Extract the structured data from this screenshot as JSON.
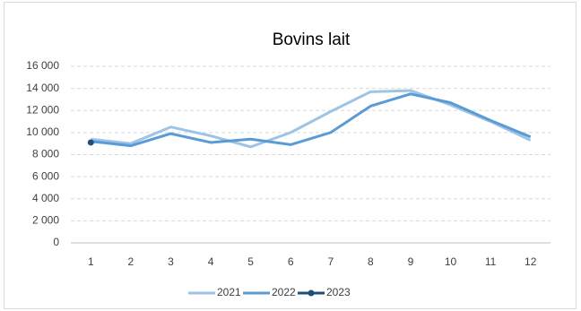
{
  "chart_data": {
    "type": "line",
    "title": "Bovins lait",
    "categories": [
      "1",
      "2",
      "3",
      "4",
      "5",
      "6",
      "7",
      "8",
      "9",
      "10",
      "11",
      "12"
    ],
    "series": [
      {
        "name": "2021",
        "color": "#9dc3e6",
        "values": [
          9400,
          9000,
          10500,
          9700,
          8700,
          10000,
          11900,
          13700,
          13800,
          12500,
          11000,
          9300
        ]
      },
      {
        "name": "2022",
        "color": "#5b9bd5",
        "values": [
          9200,
          8800,
          9900,
          9100,
          9400,
          8900,
          10000,
          12400,
          13500,
          12700,
          11100,
          9600
        ]
      },
      {
        "name": "2023",
        "color": "#1f4e79",
        "values": [
          9100,
          null,
          null,
          null,
          null,
          null,
          null,
          null,
          null,
          null,
          null,
          null
        ]
      }
    ],
    "ylim": [
      0,
      16000
    ],
    "yticks": [
      0,
      {
        "value": 2000,
        "label": "2 000"
      },
      {
        "value": 4000,
        "label": "4 000"
      },
      {
        "value": 6000,
        "label": "6 000"
      },
      {
        "value": 8000,
        "label": "8 000"
      },
      {
        "value": 10000,
        "label": "10 000"
      },
      {
        "value": 12000,
        "label": "12 000"
      },
      {
        "value": 14000,
        "label": "14 000"
      },
      {
        "value": 16000,
        "label": "16 000"
      }
    ],
    "grid": true,
    "legend": "bottom"
  }
}
